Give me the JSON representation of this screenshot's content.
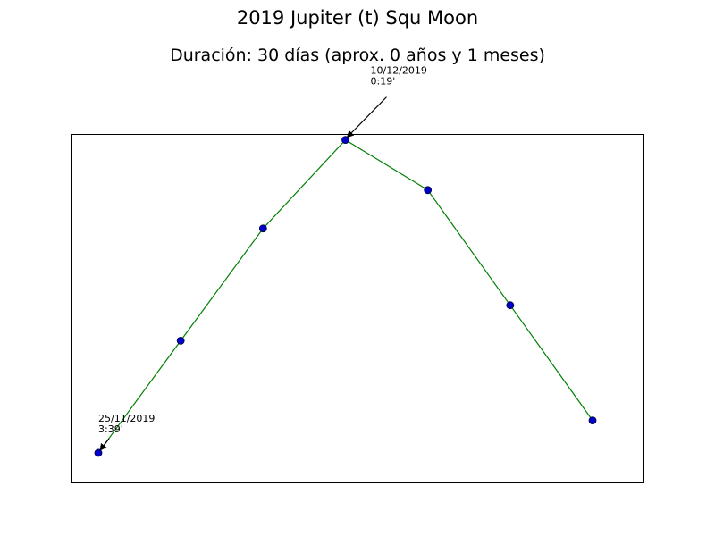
{
  "chart_data": {
    "type": "line",
    "title": "2019 Jupiter (t) Squ Moon",
    "subtitle": "Duración: 30 días (aprox. 0 años y 1 meses)",
    "xlabel": "",
    "ylabel": "",
    "axes_visible": false,
    "grid": false,
    "line_color": "#008000",
    "marker_color": "#0000cc",
    "series": [
      {
        "y": [
          1.0,
          2.9,
          4.8,
          6.3,
          5.45,
          3.5,
          1.55
        ]
      }
    ],
    "ylim": [
      0.5,
      6.4
    ],
    "annotations": [
      {
        "point_index": 0,
        "lines": [
          "25/11/2019",
          "3:39'"
        ]
      },
      {
        "point_index": 3,
        "lines": [
          "10/12/2019",
          "0:19'"
        ]
      }
    ]
  }
}
